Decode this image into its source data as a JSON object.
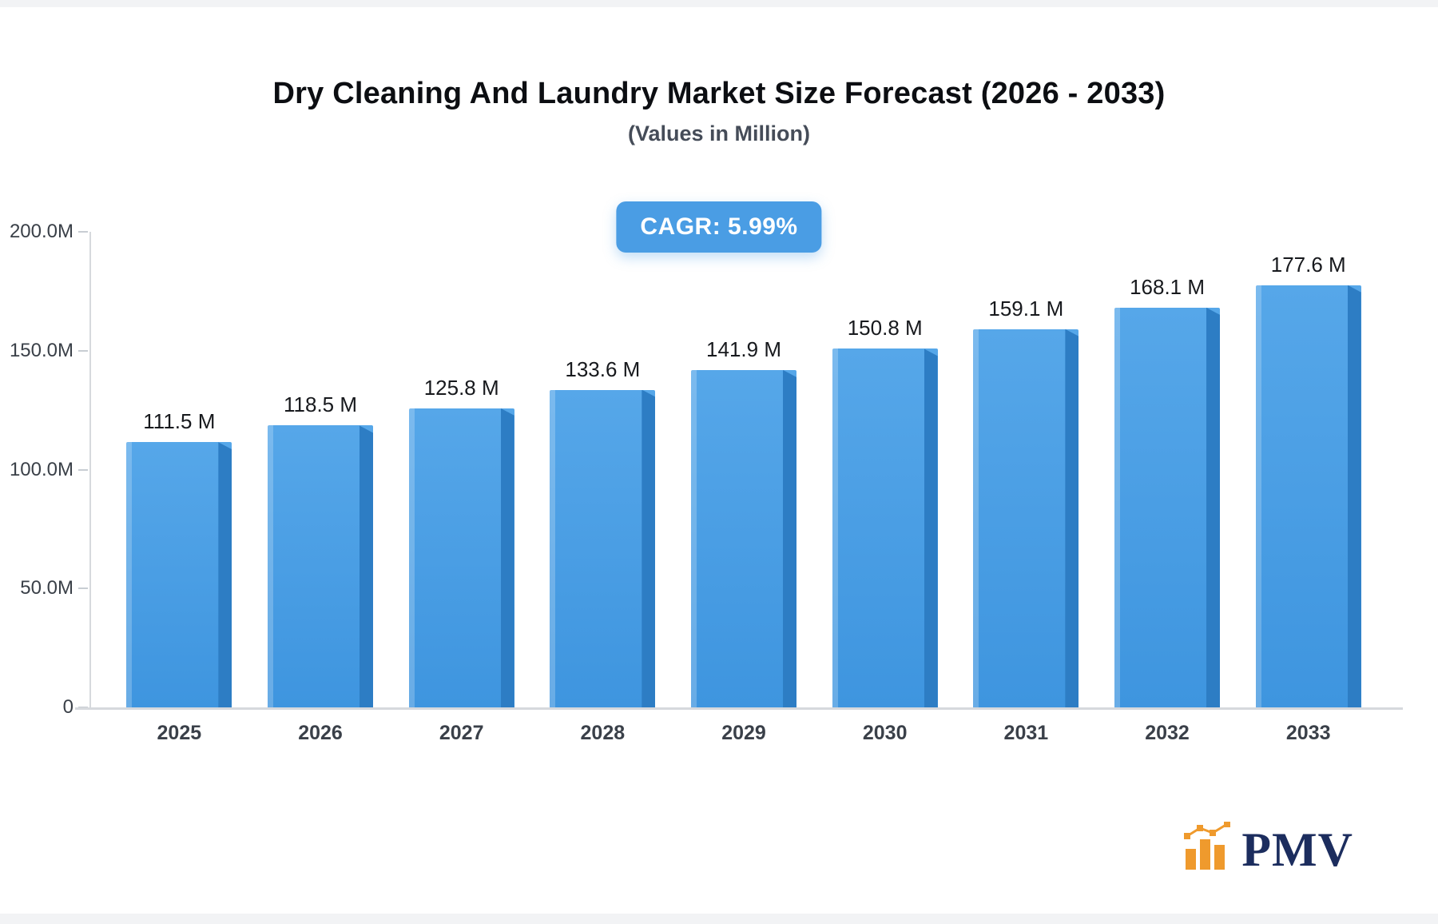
{
  "page": {
    "title": "Dry Cleaning And Laundry Market Size Forecast (2026 - 2033)",
    "subtitle": "(Values in Million)",
    "cagr_badge": "CAGR: 5.99%"
  },
  "brand": {
    "name": "PMV",
    "icon": "bar-chart-logo-icon"
  },
  "colors": {
    "badge_bg": "#4a9de4",
    "bar_top": "#56a7e9",
    "bar_bottom": "#3e95df",
    "bar_side": "#2d7dc4",
    "axis_line": "#d6d9dd",
    "logo_orange": "#ef9a2d",
    "logo_navy": "#1c2d5e"
  },
  "chart_data": {
    "type": "bar",
    "title": "Dry Cleaning And Laundry Market Size Forecast (2026 - 2033)",
    "subtitle": "(Values in Million)",
    "annotation": "CAGR: 5.99%",
    "categories": [
      "2025",
      "2026",
      "2027",
      "2028",
      "2029",
      "2030",
      "2031",
      "2032",
      "2033"
    ],
    "values": [
      111.5,
      118.5,
      125.8,
      133.6,
      141.9,
      150.8,
      159.1,
      168.1,
      177.6
    ],
    "value_labels": [
      "111.5 M",
      "118.5 M",
      "125.8 M",
      "133.6 M",
      "141.9 M",
      "150.8 M",
      "159.1 M",
      "168.1 M",
      "177.6 M"
    ],
    "xlabel": "",
    "ylabel": "",
    "ylim": [
      0,
      200
    ],
    "yticks": [
      {
        "value": 0,
        "label": "0"
      },
      {
        "value": 50,
        "label": "50.0M"
      },
      {
        "value": 100,
        "label": "100.0M"
      },
      {
        "value": 150,
        "label": "150.0M"
      },
      {
        "value": 200,
        "label": "200.0M"
      }
    ],
    "grid": false,
    "legend": false
  }
}
